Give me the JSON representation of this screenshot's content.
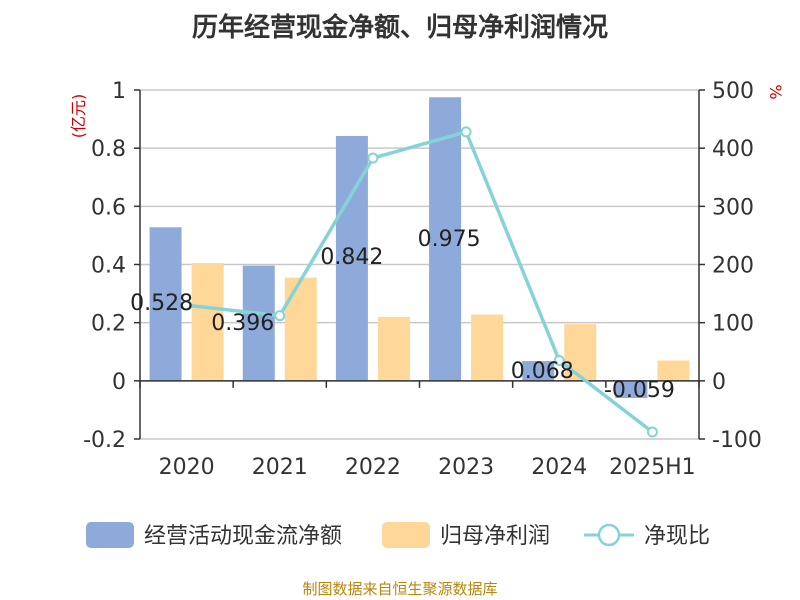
{
  "chart_data": {
    "type": "bar",
    "title": "历年经营现金净额、归母净利润情况",
    "categories": [
      "2020",
      "2021",
      "2022",
      "2023",
      "2024",
      "2025H1"
    ],
    "y_left": {
      "unit": "(亿元)",
      "ylim": [
        -0.2,
        1
      ],
      "ticks": [
        "1",
        "0.8",
        "0.6",
        "0.4",
        "0.2",
        "0",
        "-0.2"
      ],
      "tick_values": [
        1,
        0.8,
        0.6,
        0.4,
        0.2,
        0,
        -0.2
      ]
    },
    "y_right": {
      "unit": "%",
      "ylim": [
        -100,
        500
      ],
      "ticks": [
        "500",
        "400",
        "300",
        "200",
        "100",
        "0",
        "-100"
      ],
      "tick_values": [
        500,
        400,
        300,
        200,
        100,
        0,
        -100
      ]
    },
    "series": [
      {
        "name": "经营活动现金流净额",
        "type": "bar",
        "axis": "left",
        "color": "#8eaadb",
        "values": [
          0.528,
          0.396,
          0.842,
          0.975,
          0.068,
          -0.059
        ],
        "labels": [
          "0.528",
          "0.396",
          "0.842",
          "0.975",
          "0.068",
          "-0.059"
        ]
      },
      {
        "name": "归母净利润",
        "type": "bar",
        "axis": "left",
        "color": "#ffd899",
        "values": [
          0.405,
          0.355,
          0.22,
          0.228,
          0.195,
          0.07
        ]
      },
      {
        "name": "净现比",
        "type": "line",
        "axis": "right",
        "color": "#86d3d6",
        "values": [
          130,
          112,
          383,
          428,
          35,
          -88
        ]
      }
    ],
    "grid": true,
    "legend_position": "bottom",
    "source": "制图数据来自恒生聚源数据库"
  }
}
